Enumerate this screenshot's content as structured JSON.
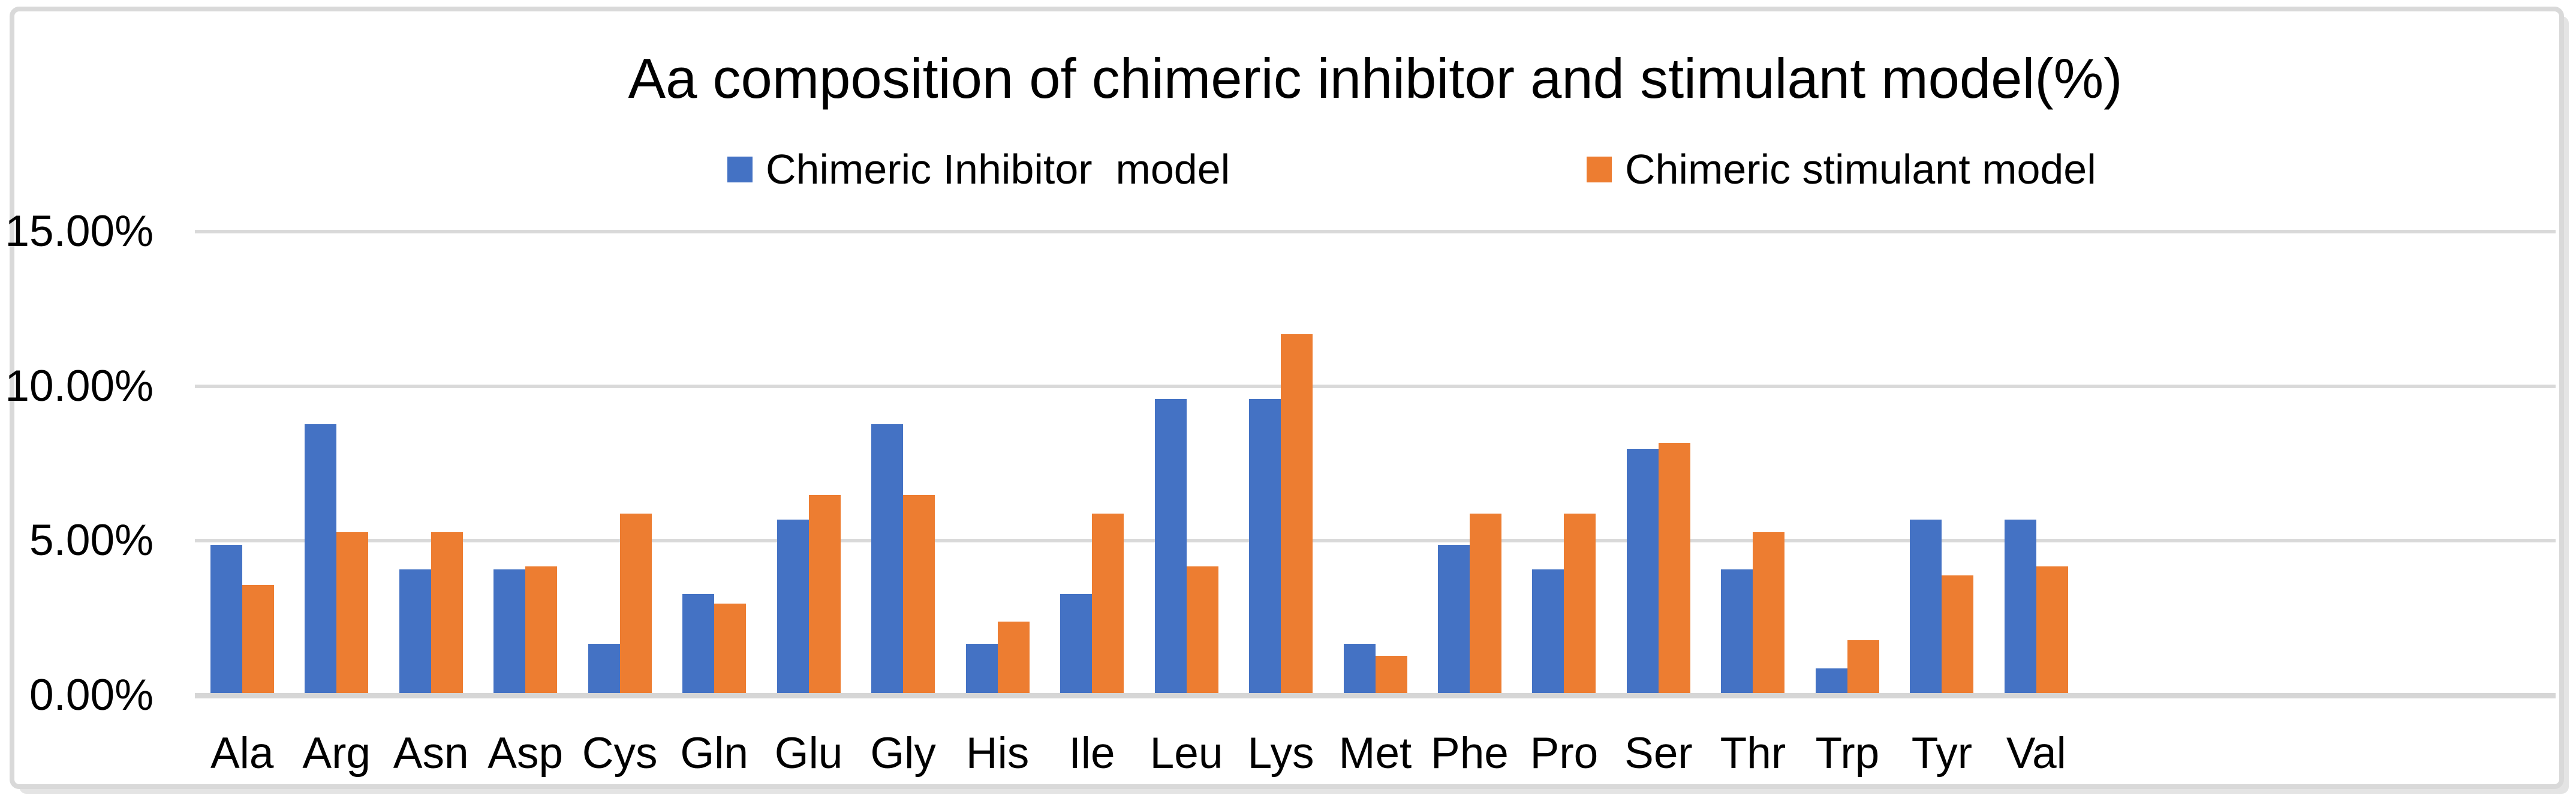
{
  "chart_data": {
    "type": "bar",
    "title": "Aa composition of chimeric inhibitor and stimulant model(%)",
    "xlabel": "",
    "ylabel": "",
    "ylim": [
      0,
      15
    ],
    "grid": true,
    "legend_position": "top",
    "y_ticks": [
      {
        "label": "15.00%",
        "value": 15
      },
      {
        "label": "10.00%",
        "value": 10
      },
      {
        "label": "5.00%",
        "value": 5
      },
      {
        "label": "0.00%",
        "value": 0
      }
    ],
    "categories": [
      "Ala",
      "Arg",
      "Asn",
      "Asp",
      "Cys",
      "Gln",
      "Glu",
      "Gly",
      "His",
      "Ile",
      "Leu",
      "Lys",
      "Met",
      "Phe",
      "Pro",
      "Ser",
      "Thr",
      "Trp",
      "Tyr",
      "Val"
    ],
    "series": [
      {
        "name": "Chimeric Inhibitor  model",
        "color": "#4472C4",
        "values": [
          4.8,
          8.7,
          4.0,
          4.0,
          1.6,
          3.2,
          5.6,
          8.7,
          1.6,
          3.2,
          9.5,
          9.5,
          1.6,
          4.8,
          4.0,
          7.9,
          4.0,
          0.8,
          5.6,
          5.6
        ]
      },
      {
        "name": "Chimeric stimulant model",
        "color": "#ED7D31",
        "values": [
          3.5,
          5.2,
          5.2,
          4.1,
          5.8,
          2.9,
          6.4,
          6.4,
          2.3,
          5.8,
          4.1,
          11.6,
          1.2,
          5.8,
          5.8,
          8.1,
          5.2,
          1.7,
          3.8,
          4.1
        ]
      }
    ]
  }
}
